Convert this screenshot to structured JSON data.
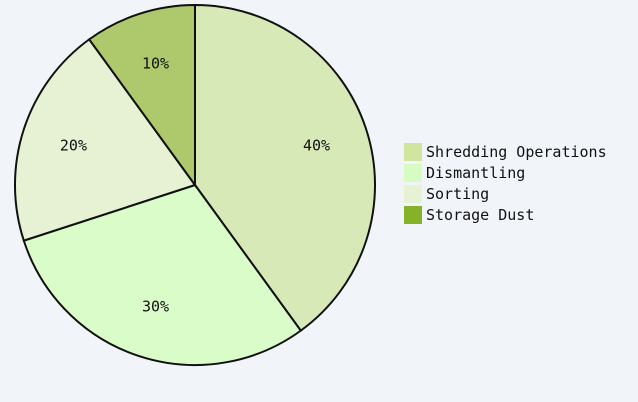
{
  "chart_data": {
    "type": "pie",
    "title": "",
    "legend_position": "right",
    "slices": [
      {
        "label": "Shredding Operations",
        "value": 40,
        "display": "40%",
        "color": "#d8e9b8"
      },
      {
        "label": "Dismantling",
        "value": 30,
        "display": "30%",
        "color": "#dafcc8"
      },
      {
        "label": "Sorting",
        "value": 20,
        "display": "20%",
        "color": "#e6f2d3"
      },
      {
        "label": "Storage Dust",
        "value": 10,
        "display": "10%",
        "color": "#adc96c"
      }
    ],
    "legend": [
      {
        "label": "Shredding Operations",
        "color": "#cfe5a0"
      },
      {
        "label": "Dismantling",
        "color": "#d6fcc4"
      },
      {
        "label": "Sorting",
        "color": "#e6f2d3"
      },
      {
        "label": "Storage Dust",
        "color": "#86b22a"
      }
    ]
  }
}
